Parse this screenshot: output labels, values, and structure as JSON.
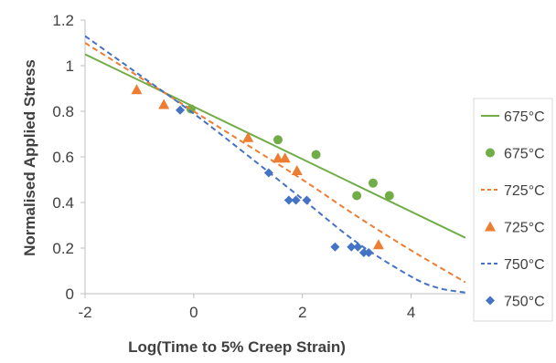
{
  "chart_data": {
    "type": "scatter",
    "title": "",
    "xlabel": "Log(Time to 5% Creep Strain)",
    "ylabel": "Normalised Applied Stress",
    "xlim": [
      -2,
      5
    ],
    "ylim": [
      0,
      1.2
    ],
    "xticks": [
      "-2",
      "0",
      "2",
      "4"
    ],
    "xtick_values": [
      -2,
      0,
      2,
      4
    ],
    "yticks": [
      "0",
      "0.2",
      "0.4",
      "0.6",
      "0.8",
      "1",
      "1.2"
    ],
    "ytick_values": [
      0,
      0.2,
      0.4,
      0.6,
      0.8,
      1.0,
      1.2
    ],
    "grid": false,
    "legend_position": "right",
    "series": [
      {
        "name": "675°C",
        "kind": "line",
        "style": "solid",
        "color": "#70ad47",
        "x": [
          -2,
          5
        ],
        "y": [
          1.05,
          0.245
        ]
      },
      {
        "name": "675°C",
        "kind": "points",
        "marker": "circle",
        "color": "#70ad47",
        "x": [
          -0.05,
          1.55,
          2.25,
          3.0,
          3.3,
          3.6
        ],
        "y": [
          0.81,
          0.675,
          0.61,
          0.43,
          0.485,
          0.43
        ]
      },
      {
        "name": "725°C",
        "kind": "line",
        "style": "dash",
        "color": "#ed7d31",
        "x": [
          -2,
          -1,
          0,
          1,
          2,
          3,
          4,
          5
        ],
        "y": [
          1.1,
          0.95,
          0.8,
          0.65,
          0.5,
          0.34,
          0.19,
          0.05
        ]
      },
      {
        "name": "725°C",
        "kind": "points",
        "marker": "triangle",
        "color": "#ed7d31",
        "x": [
          -1.05,
          -0.55,
          1.0,
          1.55,
          1.68,
          1.9,
          3.4
        ],
        "y": [
          0.895,
          0.83,
          0.685,
          0.595,
          0.595,
          0.54,
          0.215
        ]
      },
      {
        "name": "750°C",
        "kind": "line",
        "style": "dash",
        "color": "#4472c4",
        "x": [
          -2,
          -1,
          0,
          1,
          2,
          3,
          4,
          4.5,
          5
        ],
        "y": [
          1.13,
          0.96,
          0.79,
          0.605,
          0.415,
          0.225,
          0.075,
          0.025,
          0.005
        ]
      },
      {
        "name": "750°C",
        "kind": "points",
        "marker": "diamond",
        "color": "#4472c4",
        "x": [
          -0.25,
          1.38,
          1.75,
          1.88,
          2.08,
          2.6,
          2.9,
          3.02,
          3.13,
          3.22
        ],
        "y": [
          0.805,
          0.53,
          0.41,
          0.41,
          0.41,
          0.205,
          0.205,
          0.205,
          0.18,
          0.18
        ]
      }
    ]
  }
}
